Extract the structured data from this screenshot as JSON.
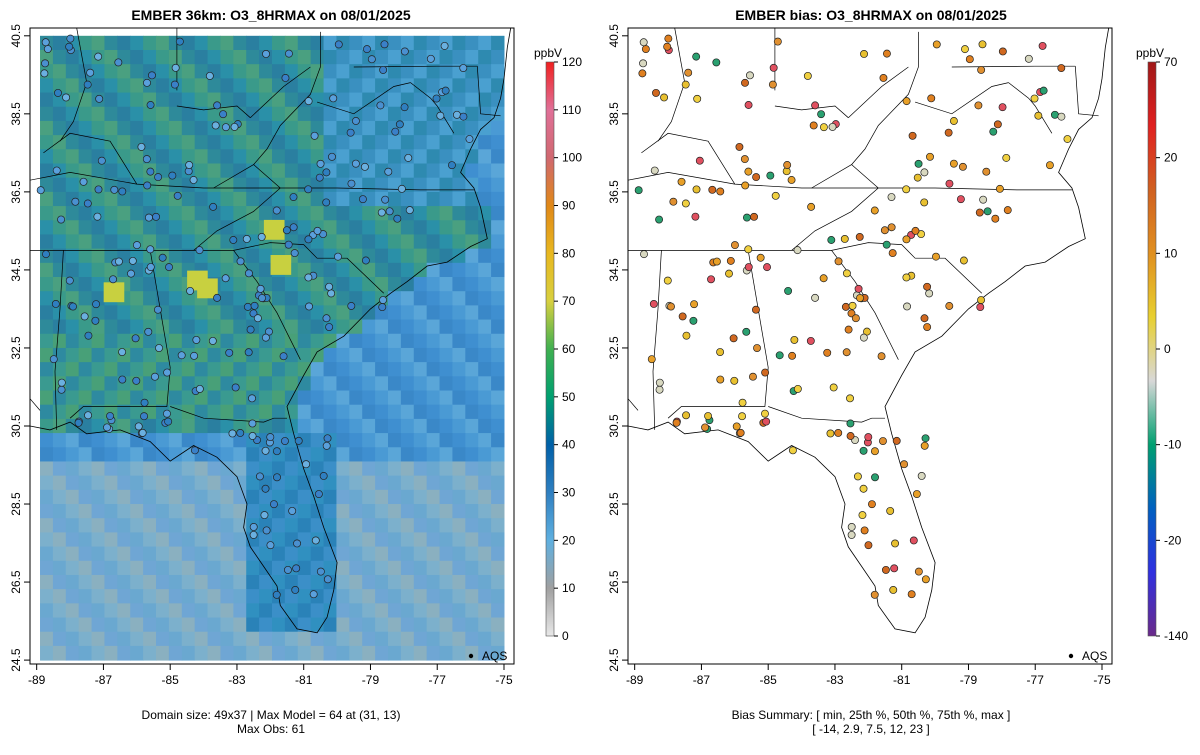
{
  "panels": [
    {
      "title": "EMBER 36km: O3_8HRMAX on 08/01/2025",
      "footer_line1": "Domain size: 49x37 | Max Model = 64 at (31, 13)",
      "footer_line2": "Max Obs: 61",
      "legend_label": "AQS",
      "colorbar_unit": "ppbV",
      "colorbar_ticks": [
        "0",
        "10",
        "20",
        "30",
        "40",
        "50",
        "60",
        "70",
        "80",
        "90",
        "100",
        "110",
        "120"
      ],
      "colorbar_colors": [
        "#e8e8e8",
        "#a0a0a0",
        "#5fb0e0",
        "#2f7fc0",
        "#0060a8",
        "#00a070",
        "#40b050",
        "#d8d040",
        "#e8b820",
        "#e08818",
        "#d06870",
        "#e07098",
        "#f02020"
      ]
    },
    {
      "title": "EMBER bias: O3_8HRMAX on 08/01/2025",
      "footer_line1": "Bias Summary: [ min, 25th %, 50th %, 75th %, max ]",
      "footer_line2": "[ -14,  2.9,  7.5,  12,  23 ]",
      "legend_label": "AQS",
      "colorbar_unit": "ppbV",
      "colorbar_ticks": [
        "-140",
        "-20",
        "-10",
        "0",
        "10",
        "20",
        "70"
      ],
      "colorbar_colors": [
        "#6a2a8a",
        "#3030e0",
        "#0060c0",
        "#00a070",
        "#d8d8d8",
        "#e8d030",
        "#e09020",
        "#d06020",
        "#e02020",
        "#a01818"
      ]
    }
  ],
  "axis": {
    "x_ticks": [
      "-89",
      "-87",
      "-85",
      "-83",
      "-81",
      "-79",
      "-77",
      "-75"
    ],
    "y_ticks": [
      "24.5",
      "26.5",
      "28.5",
      "30.5",
      "32.5",
      "34.5",
      "36.5",
      "38.5",
      "40.5"
    ]
  },
  "summary": {
    "min": -14,
    "p25": 2.9,
    "p50": 7.5,
    "p75": 12,
    "max": 23
  },
  "colors": {
    "ocean_model": "#6ca8d6",
    "land_model": "#2e8a9a",
    "station_obs": "#4a90d0",
    "bias_high": "#e08020",
    "bias_mid": "#e8c030",
    "bias_low": "#2aa070"
  }
}
